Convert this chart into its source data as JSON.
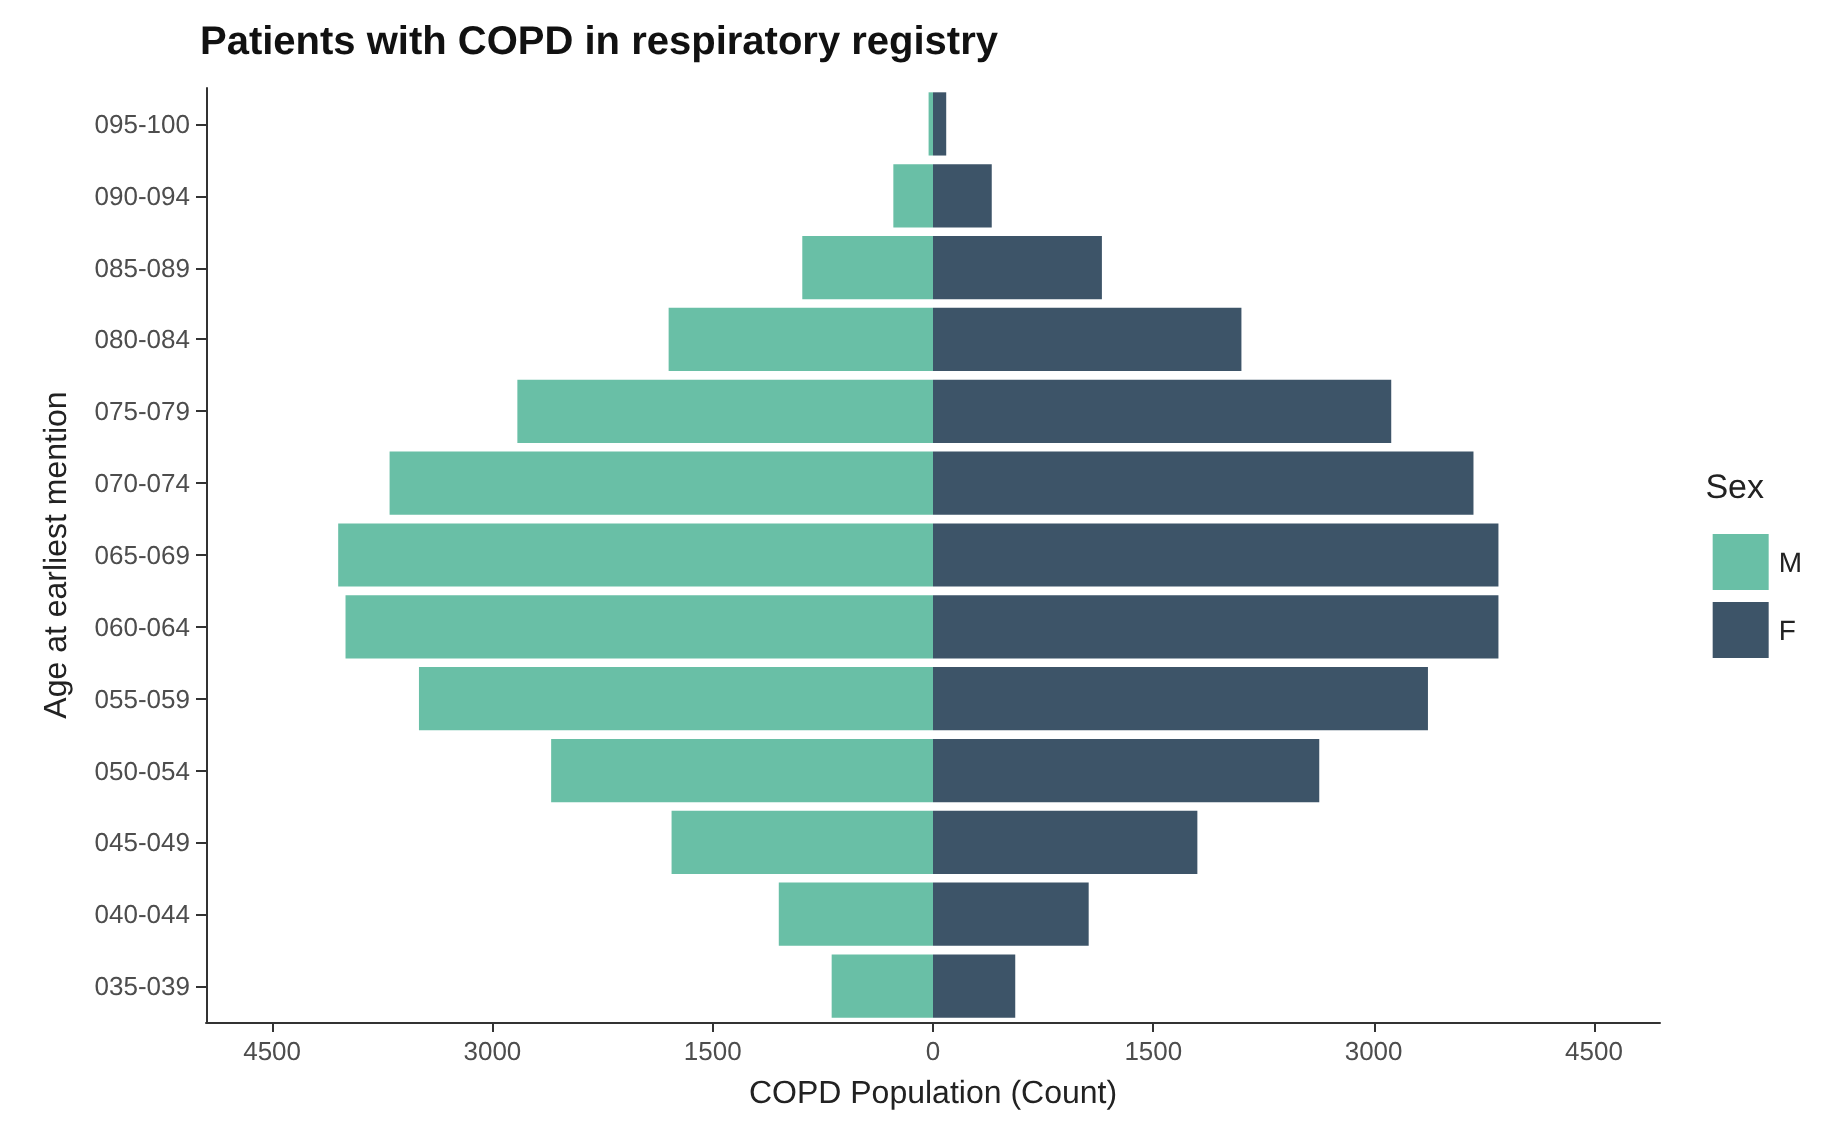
{
  "chart_data": {
    "type": "bar",
    "orientation": "horizontal",
    "stacked": true,
    "title": "Patients with COPD in respiratory registry",
    "xlabel": "COPD Population (Count)",
    "ylabel": "Age at earliest mention",
    "legend_title": "Sex",
    "legend": "right",
    "grid": false,
    "categories": [
      "095-100",
      "090-094",
      "085-089",
      "080-084",
      "075-079",
      "070-074",
      "065-069",
      "060-064",
      "055-059",
      "050-054",
      "045-049",
      "040-044",
      "035-039"
    ],
    "xlim": [
      -4950,
      4950
    ],
    "xticks": [
      {
        "value": -4500,
        "label": "4500"
      },
      {
        "value": -3000,
        "label": "3000"
      },
      {
        "value": -1500,
        "label": "1500"
      },
      0,
      1500,
      3000,
      4500
    ],
    "series": [
      {
        "name": "M",
        "color": "#69bfa6",
        "values": [
          -30,
          -270,
          -890,
          -1800,
          -2830,
          -3700,
          -4050,
          -4000,
          -3500,
          -2600,
          -1780,
          -1050,
          -690
        ]
      },
      {
        "name": "F",
        "color": "#3d5468",
        "values": [
          90,
          400,
          1150,
          2100,
          3120,
          3680,
          3850,
          3850,
          3370,
          2630,
          1800,
          1060,
          560
        ]
      }
    ]
  }
}
